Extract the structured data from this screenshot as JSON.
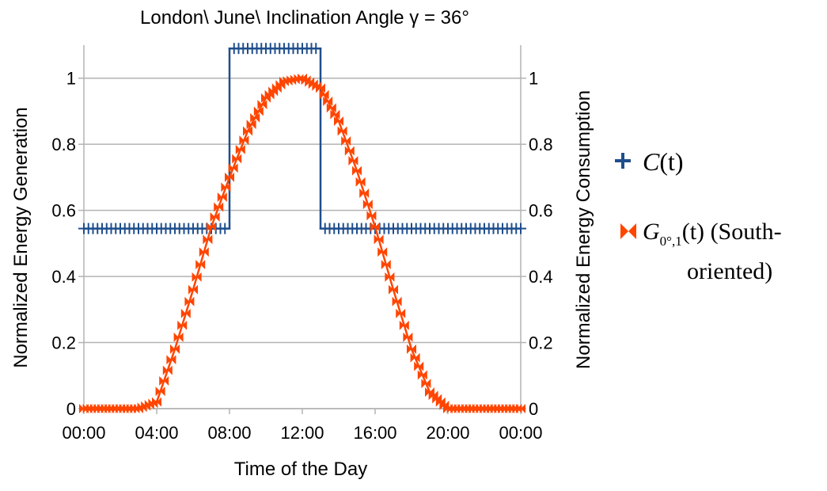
{
  "chart_data": {
    "type": "line",
    "title": "London\\ June\\ Inclination Angle γ = 36°",
    "xlabel": "Time of the Day",
    "ylabel_left": "Normalized Energy Generation",
    "ylabel_right": "Normalized Energy Consumption",
    "x_range_hours": [
      0,
      24
    ],
    "x_ticks": [
      "00:00",
      "04:00",
      "08:00",
      "12:00",
      "16:00",
      "20:00",
      "00:00"
    ],
    "ylim": [
      0,
      1.1
    ],
    "y_ticks": [
      "0",
      "0.2",
      "0.4",
      "0.6",
      "0.8",
      "1"
    ],
    "grid": "horizontal",
    "legend_placement": "right",
    "series": [
      {
        "name": "C(t)",
        "axis": "right",
        "color": "#1f4e8c",
        "marker": "plus",
        "x_hours": [
          0,
          8,
          8,
          13,
          13,
          24
        ],
        "y": [
          0.545,
          0.545,
          1.09,
          1.09,
          0.545,
          0.545
        ]
      },
      {
        "name": "G0°,1(t) (South-oriented)",
        "axis": "left",
        "color": "#ff4500",
        "marker": "bowtie",
        "x_hours": [
          0,
          1,
          2,
          3,
          4,
          5,
          6,
          7,
          8,
          9,
          10,
          11,
          12,
          13,
          14,
          15,
          16,
          17,
          18,
          19,
          20,
          21,
          22,
          23,
          24
        ],
        "y": [
          0,
          0,
          0,
          0,
          0.02,
          0.18,
          0.36,
          0.55,
          0.7,
          0.84,
          0.94,
          0.99,
          1.0,
          0.97,
          0.87,
          0.72,
          0.55,
          0.36,
          0.18,
          0.05,
          0,
          0,
          0,
          0,
          0
        ]
      }
    ]
  },
  "legend": {
    "c_label": {
      "main": "C",
      "arg": "(t)"
    },
    "g_label": {
      "main": "G",
      "sub": "0°,1",
      "arg": "(t)",
      "suffix": " (South-",
      "line2": "oriented)"
    }
  },
  "colors": {
    "grid": "#b3b3b3",
    "axis": "#b3b3b3"
  }
}
